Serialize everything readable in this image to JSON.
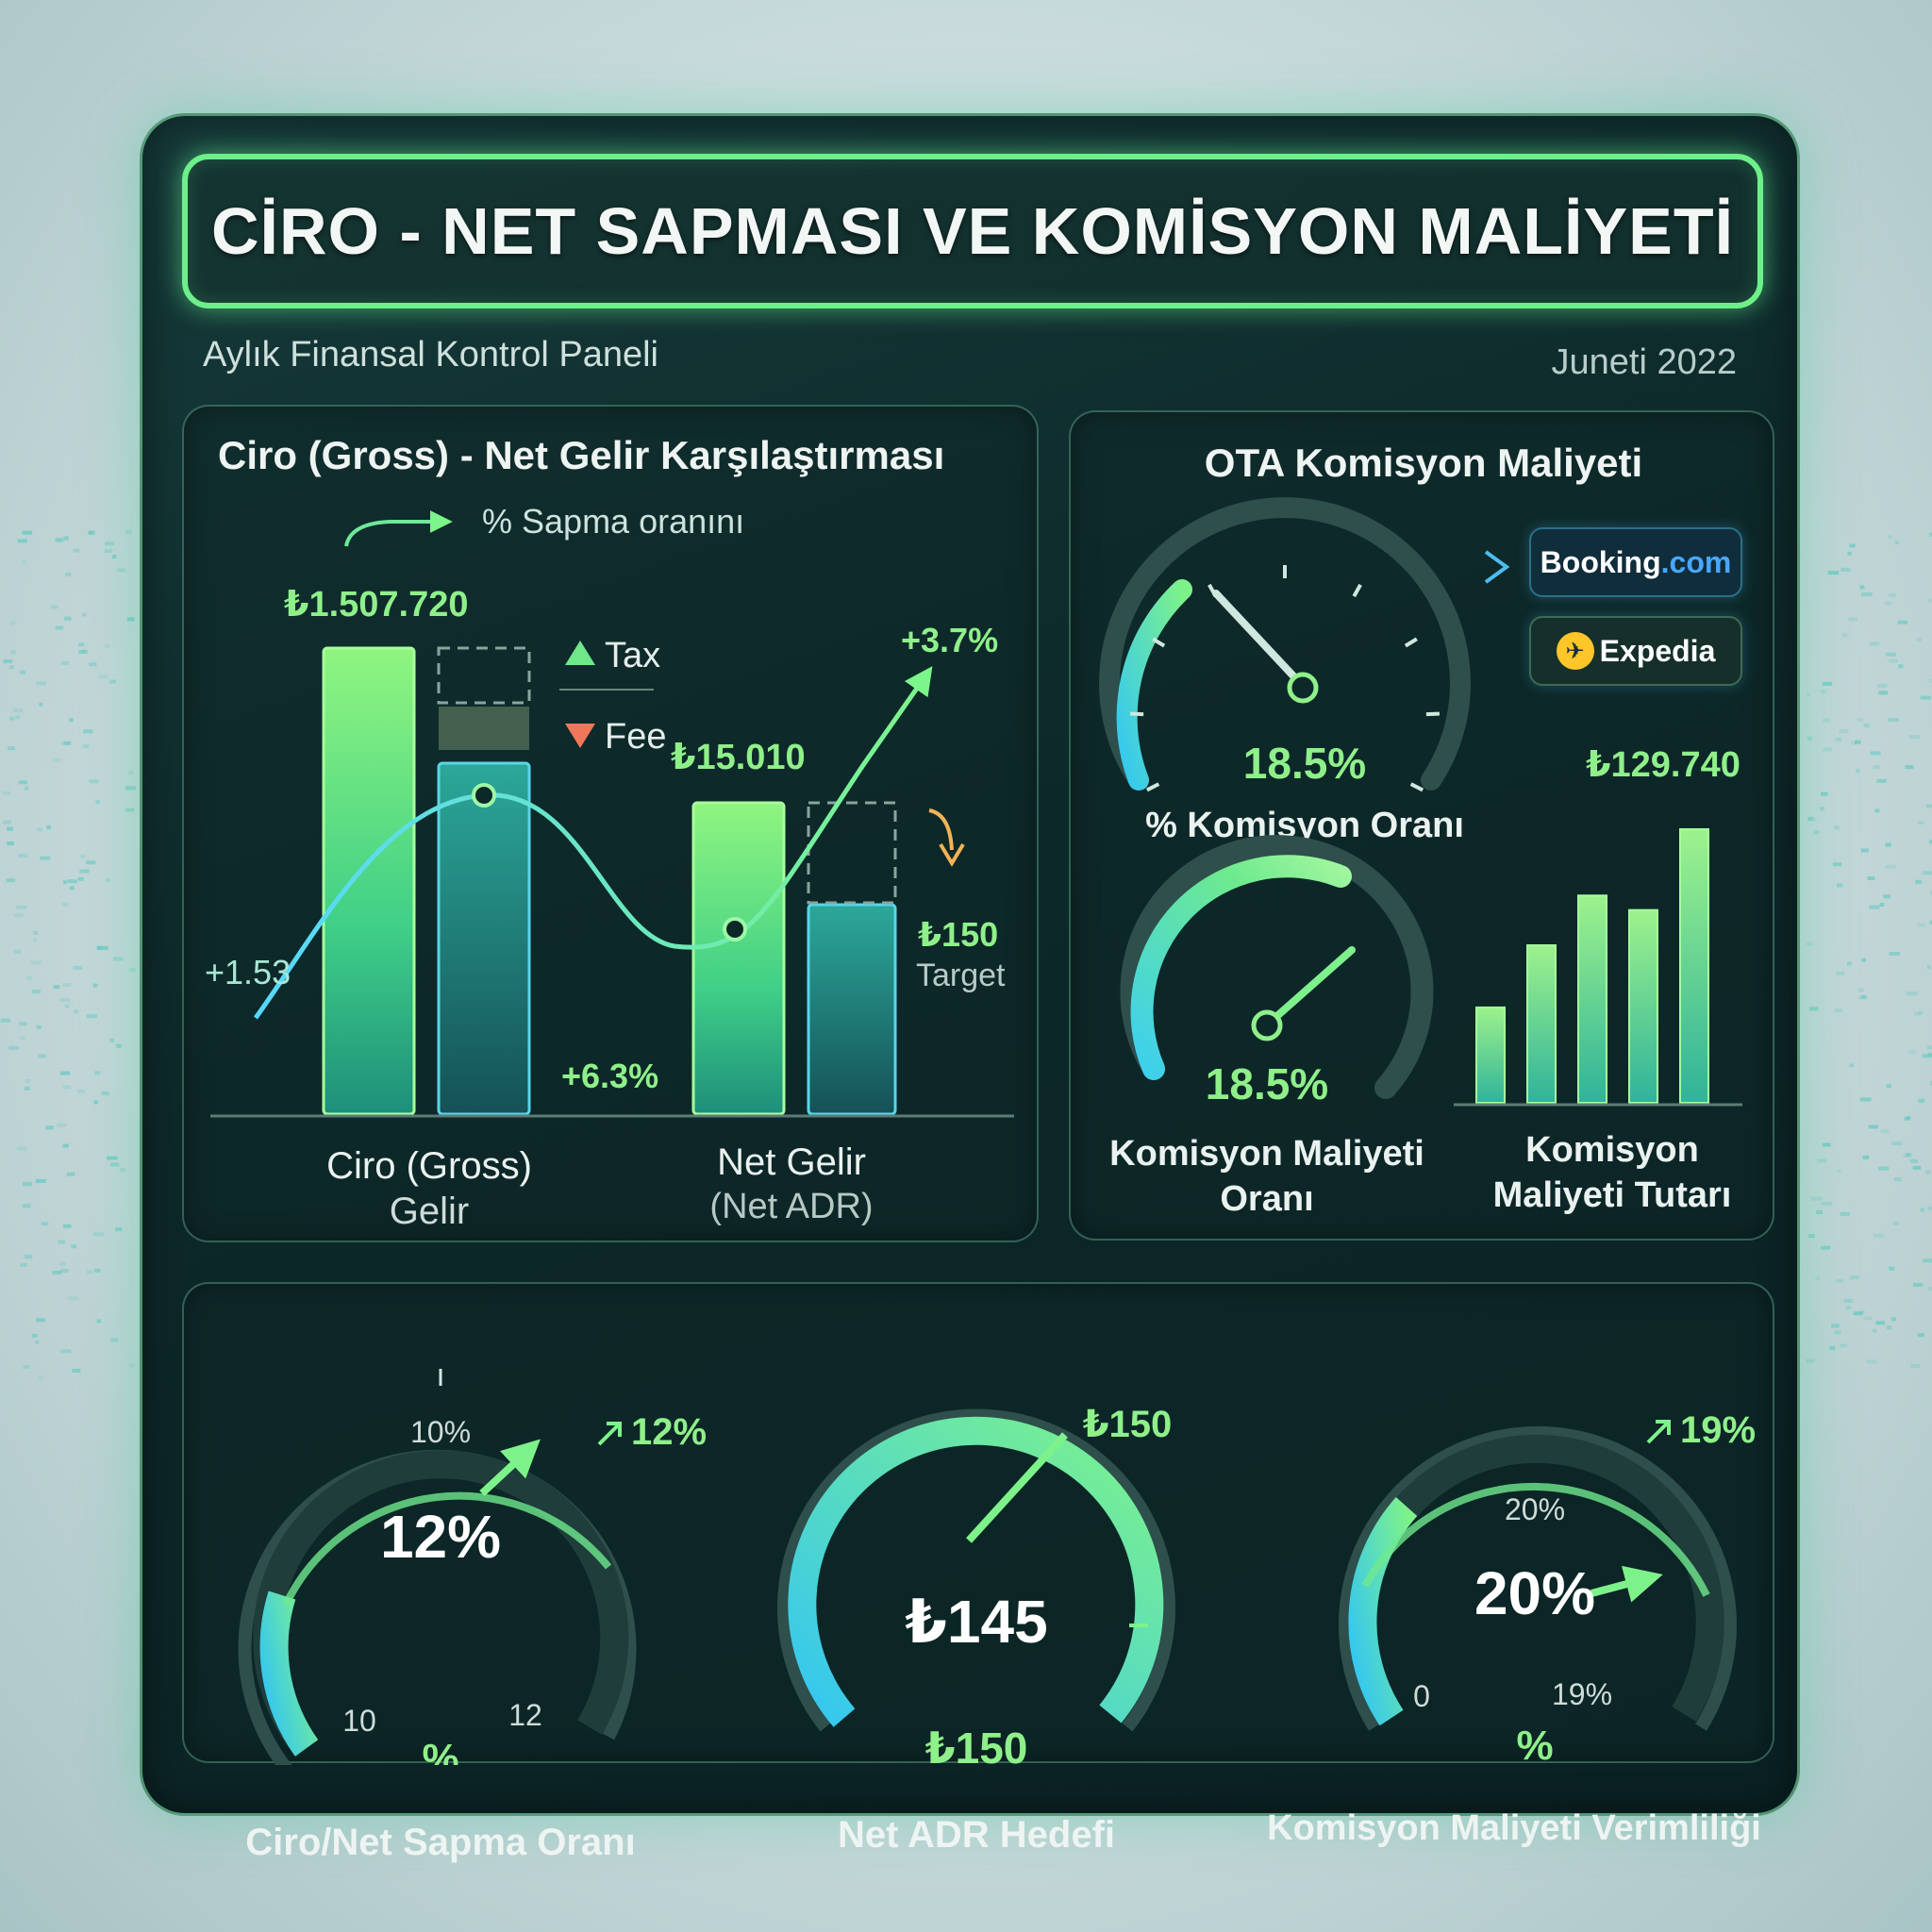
{
  "header": {
    "title": "CİRO - NET SAPMASI VE KOMİSYON MALİYETİ",
    "subtitle": "Aylık Finansal Kontrol Paneli",
    "period": "Juneti 2022"
  },
  "ota_brands": {
    "booking_name": "Booking",
    "booking_tld": ".com",
    "expedia_name": "Expedia"
  },
  "chart_data": [
    {
      "type": "bar",
      "title": "Ciro (Gross) - Net Gelir Karşılaştırması",
      "annotation": "% Sapma oranını",
      "categories": [
        {
          "line1": "Ciro (Gross)",
          "line2": "Gelir"
        },
        {
          "line1": "Net Gelir",
          "line2": "(Net ADR)"
        }
      ],
      "bar_labels": [
        "₺1.507.720",
        "₺15.010",
        "₺150"
      ],
      "bar_label_secondary": "Target",
      "legend": [
        "Tax",
        "Fee"
      ],
      "line_labels": [
        "+1.53",
        "+6.3%",
        "+3.7%"
      ]
    },
    {
      "type": "gauge",
      "title": "OTA Komisyon Maliyeti",
      "value": 18.5,
      "value_label": "18.5%",
      "label": "% Komisyon Oranı"
    },
    {
      "type": "gauge",
      "value": 18.5,
      "value_label": "18.5%",
      "label_line1": "Komisyon Maliyeti",
      "label_line2": "Oranı"
    },
    {
      "type": "bar",
      "label_line1": "Komisyon",
      "label_line2": "Maliyeti Tutarı",
      "top_label": "₺129.740",
      "values": [
        0.46,
        0.76,
        1.0,
        0.93,
        1.32
      ]
    },
    {
      "type": "gauge",
      "title": "Ciro/Net Sapma Oranı",
      "center_label": "12%",
      "unit": "%",
      "trend": "12%",
      "ticks": [
        "10%",
        "10",
        "12"
      ]
    },
    {
      "type": "gauge",
      "title": "Net ADR Hedefi",
      "center_label": "₺145",
      "target_label": "₺150",
      "bottom_label": "₺150"
    },
    {
      "type": "gauge",
      "title": "Komisyon Maliyeti Verimliliği",
      "center_label": "20%",
      "unit": "%",
      "trend": "19%",
      "ticks": [
        "20%",
        "0",
        "19%"
      ]
    }
  ]
}
